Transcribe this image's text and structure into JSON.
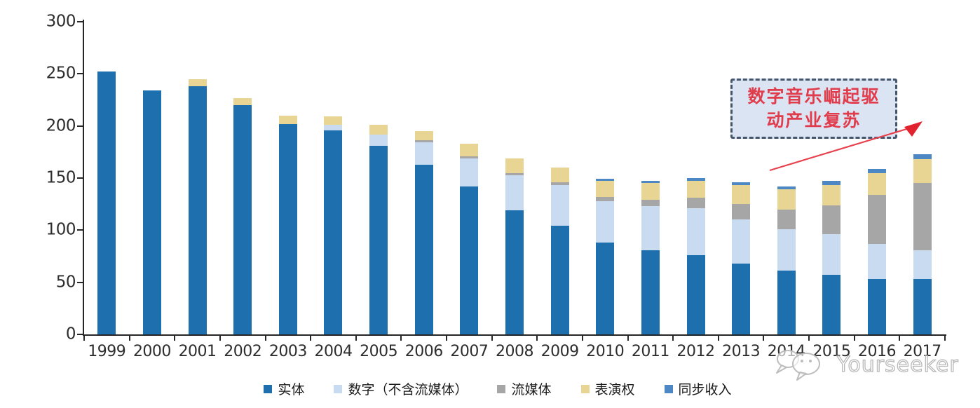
{
  "watermark": {
    "text": "Yourseeker"
  },
  "annotation": {
    "line1": "数字音乐崛起驱",
    "line2": "动产业复苏"
  },
  "chart_data": {
    "type": "bar",
    "stacked": true,
    "title": "",
    "xlabel": "",
    "ylabel": "",
    "grid": false,
    "legend_position": "bottom",
    "ylim": [
      0,
      300
    ],
    "y_ticks": [
      0,
      50,
      100,
      150,
      200,
      250,
      300
    ],
    "categories": [
      "1999",
      "2000",
      "2001",
      "2002",
      "2003",
      "2004",
      "2005",
      "2006",
      "2007",
      "2008",
      "2009",
      "2010",
      "2011",
      "2012",
      "2013",
      "2014",
      "2015",
      "2016",
      "2017"
    ],
    "series": [
      {
        "key": "physical",
        "name": "实体",
        "color": "#1e6fad",
        "values": [
          252,
          234,
          238,
          220,
          202,
          196,
          181,
          163,
          142,
          119,
          104,
          88,
          81,
          76,
          68,
          61,
          57,
          53,
          53
        ]
      },
      {
        "key": "digital",
        "name": "数字（不含流媒体）",
        "color": "#c9dbf0",
        "values": [
          0,
          0,
          0,
          0,
          0,
          5,
          11,
          21,
          27,
          34,
          39,
          40,
          42,
          45,
          42,
          40,
          39,
          34,
          28
        ]
      },
      {
        "key": "streaming",
        "name": "流媒体",
        "color": "#a6a6a6",
        "values": [
          0,
          0,
          0,
          0,
          0,
          0,
          0,
          2,
          2,
          2,
          3,
          4,
          6,
          10,
          15,
          19,
          28,
          47,
          64
        ]
      },
      {
        "key": "performance",
        "name": "表演权",
        "color": "#e8d493",
        "values": [
          0,
          0,
          7,
          7,
          8,
          8,
          9,
          9,
          12,
          14,
          14,
          15,
          16,
          16,
          18,
          19,
          19,
          21,
          23
        ]
      },
      {
        "key": "sync",
        "name": "同步收入",
        "color": "#4d87c4",
        "values": [
          0,
          0,
          0,
          0,
          0,
          0,
          0,
          0,
          0,
          0,
          0,
          2,
          2,
          3,
          3,
          3,
          4,
          4,
          5
        ]
      }
    ],
    "annotation_text": "数字音乐崛起驱动产业复苏",
    "accent_colors": {
      "axis": "#262626",
      "callout_border": "#44546a",
      "callout_fill": "#dbe4f3",
      "callout_text": "#e13c4c",
      "arrow": "#e8404d"
    }
  }
}
